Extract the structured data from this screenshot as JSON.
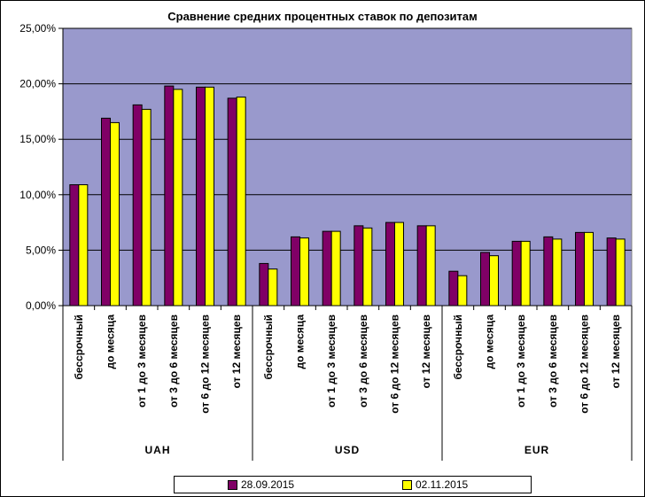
{
  "chart_data": {
    "type": "bar",
    "title": "Сравнение средних процентных ставок по депозитам",
    "ylim": [
      0,
      25
    ],
    "yticks": [
      "0,00%",
      "5,00%",
      "10,00%",
      "15,00%",
      "20,00%",
      "25,00%"
    ],
    "ytick_values": [
      0,
      5,
      10,
      15,
      20,
      25
    ],
    "grid": true,
    "legend_position": "bottom",
    "categories": [
      "бессрочный",
      "до месяца",
      "от 1 до 3 месяцев",
      "от 3 до 6 месяцев",
      "от 6 до 12 месяцев",
      "от 12 месяцев"
    ],
    "groups": [
      "UAH",
      "USD",
      "EUR"
    ],
    "series": [
      {
        "name": "28.09.2015",
        "color": "#800066",
        "values": [
          [
            10.9,
            16.9,
            18.1,
            19.8,
            19.7,
            18.7
          ],
          [
            3.8,
            6.2,
            6.7,
            7.2,
            7.5,
            7.2
          ],
          [
            3.1,
            4.8,
            5.8,
            6.2,
            6.6,
            6.1
          ]
        ]
      },
      {
        "name": "02.11.2015",
        "color": "#ffff00",
        "values": [
          [
            10.9,
            16.5,
            17.7,
            19.5,
            19.7,
            18.8
          ],
          [
            3.3,
            6.1,
            6.7,
            7.0,
            7.5,
            7.2
          ],
          [
            2.7,
            4.5,
            5.8,
            6.0,
            6.6,
            6.0
          ]
        ]
      }
    ],
    "plot_background": "#9999cc"
  }
}
